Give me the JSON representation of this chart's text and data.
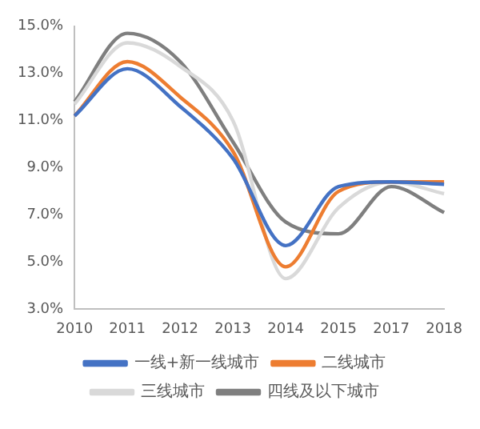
{
  "chart_data": {
    "type": "line",
    "categories": [
      "2010",
      "2011",
      "2012",
      "2013",
      "2014",
      "2015",
      "2017",
      "2018"
    ],
    "series": [
      {
        "name": "一线+新一线城市",
        "color": "#4472c4",
        "values": [
          11.2,
          13.2,
          11.6,
          9.4,
          5.7,
          8.2,
          8.4,
          8.3
        ]
      },
      {
        "name": "二线城市",
        "color": "#ed7d31",
        "values": [
          11.2,
          13.5,
          12.0,
          9.7,
          4.8,
          8.0,
          8.4,
          8.4
        ]
      },
      {
        "name": "三线城市",
        "color": "#d9d9d9",
        "values": [
          11.7,
          14.3,
          13.3,
          11.0,
          4.3,
          7.3,
          8.4,
          7.9
        ]
      },
      {
        "name": "四线及以下城市",
        "color": "#7f7f7f",
        "values": [
          11.8,
          14.7,
          13.5,
          10.1,
          6.7,
          6.2,
          8.2,
          7.1
        ]
      }
    ],
    "ylim": [
      3,
      15
    ],
    "yticks": [
      {
        "value": 3,
        "label": "3.0%"
      },
      {
        "value": 5,
        "label": "5.0%"
      },
      {
        "value": 7,
        "label": "7.0%"
      },
      {
        "value": 9,
        "label": "9.0%"
      },
      {
        "value": 11,
        "label": "11.0%"
      },
      {
        "value": 13,
        "label": "13.0%"
      },
      {
        "value": 15,
        "label": "15.0%"
      }
    ],
    "legend": "bottom",
    "grid": false,
    "marker": "none",
    "line_style": "solid"
  }
}
